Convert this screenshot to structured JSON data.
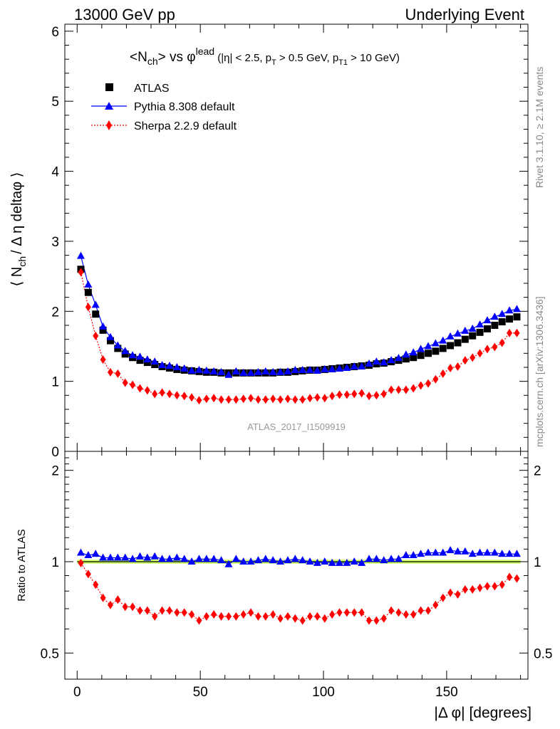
{
  "header": {
    "left": "13000 GeV pp",
    "right": "Underlying Event"
  },
  "side_labels": {
    "rivet": "Rivet 3.1.10, ≥ 2.1M events",
    "mcplots": "mcplots.cern.ch [arXiv:1306.3436]"
  },
  "plot": {
    "title_main": "<N",
    "title_sub": "ch",
    "title_mid": "> vs φ",
    "title_sup": "lead",
    "title_cuts": " (|η| < 2.5, p",
    "title_cuts_sub1": "T",
    "title_cuts2": " > 0.5 GeV, p",
    "title_cuts_sub2": "T1",
    "title_cuts3": " > 10 GeV)",
    "ylabel_pre": "⟨ N",
    "ylabel_sub": "ch",
    "ylabel_post": "/ Δ η deltaφ ⟩",
    "ratio_ylabel": "Ratio to ATLAS",
    "xlabel": "|Δ φ| [degrees]",
    "watermark": "ATLAS_2017_I1509919"
  },
  "colors": {
    "atlas": "#000000",
    "pythia": "#0000ff",
    "sherpa": "#ff0000",
    "band": "#ccff66"
  },
  "chart_data": [
    {
      "type": "scatter",
      "title": "<Nch> vs φlead (|η| < 2.5, pT > 0.5 GeV, pT1 > 10 GeV)",
      "xlabel": "|Δ φ| [degrees]",
      "ylabel": "⟨ Nch / Δ η deltaφ ⟩",
      "xlim": [
        -5,
        183
      ],
      "ylim": [
        0,
        6.1
      ],
      "yticks": [
        0,
        1,
        2,
        3,
        4,
        5,
        6
      ],
      "legend": "top-left",
      "x": [
        1.5,
        4.5,
        7.5,
        10.5,
        13.5,
        16.5,
        19.5,
        22.5,
        25.5,
        28.5,
        31.5,
        34.5,
        37.5,
        40.5,
        43.5,
        46.5,
        49.5,
        52.5,
        55.5,
        58.5,
        61.5,
        64.5,
        67.5,
        70.5,
        73.5,
        76.5,
        79.5,
        82.5,
        85.5,
        88.5,
        91.5,
        94.5,
        97.5,
        100.5,
        103.5,
        106.5,
        109.5,
        112.5,
        115.5,
        118.5,
        121.5,
        124.5,
        127.5,
        130.5,
        133.5,
        136.5,
        139.5,
        142.5,
        145.5,
        148.5,
        151.5,
        154.5,
        157.5,
        160.5,
        163.5,
        166.5,
        169.5,
        172.5,
        175.5,
        178.5
      ],
      "series": [
        {
          "name": "ATLAS",
          "marker": "square",
          "values": [
            2.6,
            2.27,
            1.96,
            1.73,
            1.58,
            1.47,
            1.39,
            1.34,
            1.3,
            1.27,
            1.24,
            1.21,
            1.19,
            1.17,
            1.16,
            1.15,
            1.14,
            1.13,
            1.13,
            1.12,
            1.12,
            1.12,
            1.12,
            1.12,
            1.12,
            1.12,
            1.12,
            1.13,
            1.13,
            1.14,
            1.15,
            1.16,
            1.16,
            1.17,
            1.18,
            1.19,
            1.2,
            1.21,
            1.22,
            1.23,
            1.25,
            1.26,
            1.28,
            1.3,
            1.32,
            1.34,
            1.37,
            1.4,
            1.43,
            1.47,
            1.51,
            1.55,
            1.6,
            1.65,
            1.7,
            1.75,
            1.8,
            1.85,
            1.89,
            1.92
          ]
        },
        {
          "name": "Pythia 8.308 default",
          "marker": "triangle",
          "values": [
            2.79,
            2.38,
            2.09,
            1.78,
            1.63,
            1.51,
            1.43,
            1.37,
            1.35,
            1.31,
            1.28,
            1.23,
            1.22,
            1.2,
            1.18,
            1.15,
            1.16,
            1.15,
            1.14,
            1.13,
            1.09,
            1.14,
            1.12,
            1.12,
            1.13,
            1.14,
            1.13,
            1.13,
            1.14,
            1.16,
            1.16,
            1.16,
            1.15,
            1.17,
            1.17,
            1.18,
            1.19,
            1.21,
            1.21,
            1.25,
            1.28,
            1.27,
            1.3,
            1.33,
            1.38,
            1.41,
            1.46,
            1.5,
            1.54,
            1.58,
            1.64,
            1.68,
            1.72,
            1.75,
            1.81,
            1.87,
            1.92,
            1.96,
            2.01,
            2.03
          ]
        },
        {
          "name": "Sherpa 2.2.9 default",
          "marker": "diamond",
          "values": [
            2.56,
            2.06,
            1.65,
            1.31,
            1.13,
            1.11,
            0.98,
            0.95,
            0.9,
            0.87,
            0.82,
            0.84,
            0.82,
            0.8,
            0.79,
            0.77,
            0.73,
            0.75,
            0.76,
            0.74,
            0.74,
            0.74,
            0.75,
            0.76,
            0.74,
            0.74,
            0.75,
            0.74,
            0.75,
            0.74,
            0.74,
            0.76,
            0.77,
            0.76,
            0.79,
            0.81,
            0.81,
            0.82,
            0.83,
            0.79,
            0.8,
            0.82,
            0.88,
            0.88,
            0.88,
            0.9,
            0.94,
            0.97,
            1.03,
            1.11,
            1.19,
            1.21,
            1.3,
            1.34,
            1.4,
            1.46,
            1.49,
            1.55,
            1.69,
            1.69
          ]
        }
      ]
    },
    {
      "type": "scatter",
      "ylabel": "Ratio to ATLAS",
      "xlabel": "|Δ φ| [degrees]",
      "xlim": [
        -5,
        183
      ],
      "ylim": [
        0.41,
        2.31
      ],
      "yscale": "log",
      "yticks": [
        0.5,
        1,
        2
      ],
      "xticks": [
        0,
        50,
        100,
        150
      ],
      "x": [
        1.5,
        4.5,
        7.5,
        10.5,
        13.5,
        16.5,
        19.5,
        22.5,
        25.5,
        28.5,
        31.5,
        34.5,
        37.5,
        40.5,
        43.5,
        46.5,
        49.5,
        52.5,
        55.5,
        58.5,
        61.5,
        64.5,
        67.5,
        70.5,
        73.5,
        76.5,
        79.5,
        82.5,
        85.5,
        88.5,
        91.5,
        94.5,
        97.5,
        100.5,
        103.5,
        106.5,
        109.5,
        112.5,
        115.5,
        118.5,
        121.5,
        124.5,
        127.5,
        130.5,
        133.5,
        136.5,
        139.5,
        142.5,
        145.5,
        148.5,
        151.5,
        154.5,
        157.5,
        160.5,
        163.5,
        166.5,
        169.5,
        172.5,
        175.5,
        178.5
      ],
      "series": [
        {
          "name": "Pythia 8.308 default",
          "values": [
            1.07,
            1.05,
            1.06,
            1.03,
            1.03,
            1.03,
            1.03,
            1.02,
            1.04,
            1.03,
            1.04,
            1.02,
            1.02,
            1.03,
            1.02,
            1.0,
            1.02,
            1.02,
            1.02,
            1.01,
            0.98,
            1.02,
            1.0,
            1.0,
            1.01,
            1.02,
            1.01,
            1.0,
            1.01,
            1.02,
            1.01,
            1.0,
            0.99,
            1.0,
            0.99,
            0.99,
            0.99,
            1.0,
            0.99,
            1.02,
            1.02,
            1.01,
            1.02,
            1.02,
            1.05,
            1.05,
            1.06,
            1.07,
            1.07,
            1.07,
            1.09,
            1.08,
            1.08,
            1.06,
            1.07,
            1.07,
            1.07,
            1.06,
            1.06,
            1.06
          ]
        },
        {
          "name": "Sherpa 2.2.9 default",
          "values": [
            0.99,
            0.91,
            0.84,
            0.76,
            0.72,
            0.75,
            0.71,
            0.71,
            0.69,
            0.69,
            0.66,
            0.69,
            0.69,
            0.68,
            0.68,
            0.67,
            0.64,
            0.66,
            0.67,
            0.66,
            0.66,
            0.66,
            0.67,
            0.68,
            0.66,
            0.66,
            0.67,
            0.65,
            0.66,
            0.65,
            0.64,
            0.66,
            0.66,
            0.65,
            0.67,
            0.68,
            0.68,
            0.68,
            0.68,
            0.64,
            0.64,
            0.65,
            0.69,
            0.68,
            0.67,
            0.67,
            0.69,
            0.69,
            0.72,
            0.76,
            0.79,
            0.78,
            0.81,
            0.81,
            0.82,
            0.83,
            0.83,
            0.84,
            0.89,
            0.88
          ]
        }
      ]
    }
  ]
}
